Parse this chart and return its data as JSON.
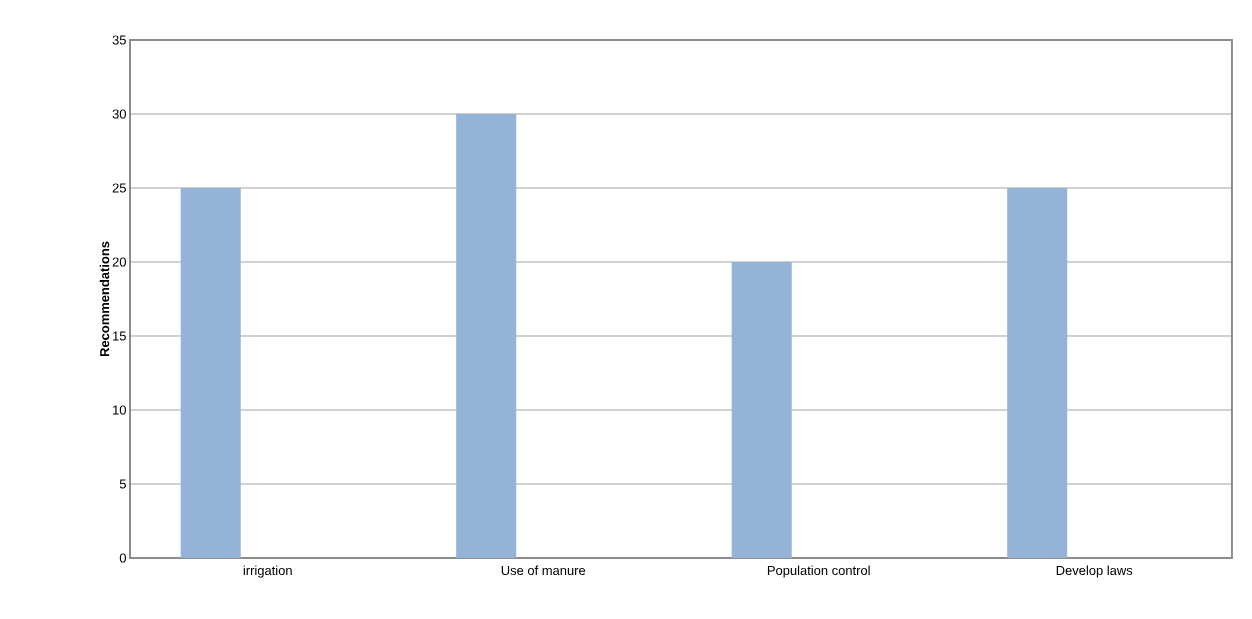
{
  "chart_data": {
    "type": "bar",
    "ylabel": "Recommendations",
    "categories": [
      "irrigation",
      "Use of manure",
      "Population control",
      "Develop laws"
    ],
    "values": [
      25,
      30,
      20,
      25
    ],
    "color": "#95b3d7",
    "ylim": [
      0,
      35
    ],
    "yticks": [
      0,
      5,
      10,
      15,
      20,
      25,
      30,
      35
    ],
    "grid": "y"
  }
}
